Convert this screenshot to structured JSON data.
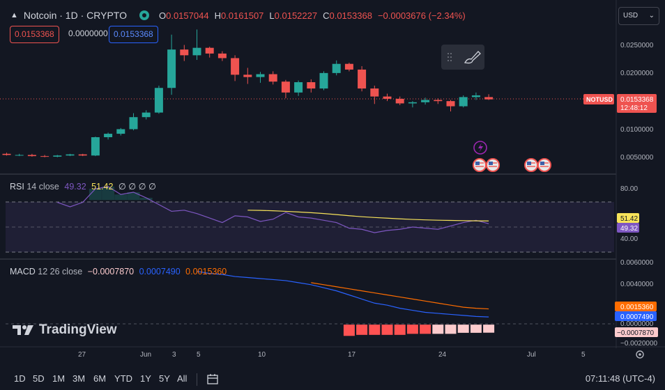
{
  "header": {
    "symbol": "Notcoin · 1D · CRYPTO",
    "open_key": "O",
    "open": "0.0157044",
    "high_key": "H",
    "high": "0.0161507",
    "low_key": "L",
    "low": "0.0152227",
    "close_key": "C",
    "close": "0.0153368",
    "change": "−0.0003676 (−2.34%)"
  },
  "quote": {
    "sell": "0.0153368",
    "spread": "0.0000000",
    "buy": "0.0153368"
  },
  "currency": {
    "label": "USD"
  },
  "price_axis": {
    "ticks": [
      "0.0250000",
      "0.0200000",
      "0.0100000",
      "0.0050000"
    ],
    "tag_symbol": "NOTUSD",
    "tag_price": "0.0153368",
    "tag_countdown": "12:48:12"
  },
  "rsi": {
    "name": "RSI",
    "params": "14 close",
    "value1": "49.32",
    "value2": "51.42",
    "extra": "∅ ∅ ∅ ∅",
    "ticks": [
      "80.00",
      "40.00"
    ],
    "tag_ma": "51.42",
    "tag_rsi": "49.32"
  },
  "macd": {
    "name": "MACD",
    "params": "12 26 close",
    "hist": "−0.0007870",
    "macd": "0.0007490",
    "signal": "0.0015360",
    "ticks": [
      "0.0060000",
      "0.0040000",
      "0.0000000",
      "−0.0020000"
    ],
    "tag_signal": "0.0015360",
    "tag_macd": "0.0007490",
    "tag_hist": "−0.0007870"
  },
  "time_axis": {
    "labels": [
      "27",
      "Jun",
      "3",
      "5",
      "10",
      "17",
      "24",
      "Jul",
      "5"
    ]
  },
  "branding": {
    "logo_text": "TradingView"
  },
  "bottom_bar": {
    "timeframes": [
      "1D",
      "5D",
      "1M",
      "3M",
      "6M",
      "YTD",
      "1Y",
      "5Y",
      "All"
    ],
    "clock": "07:11:48 (UTC-4)"
  },
  "colors": {
    "up": "#26a69a",
    "down": "#ef5350",
    "rsi_line": "#7e57c2",
    "rsi_ma": "#f7e35a",
    "macd_line": "#2962ff",
    "signal_line": "#ff6d00",
    "background": "#131722"
  },
  "chart_data": {
    "type": "candlestick",
    "ohlc": [
      [
        0.0058,
        0.006,
        0.0055,
        0.0056
      ],
      [
        0.0056,
        0.0058,
        0.0054,
        0.0056
      ],
      [
        0.0056,
        0.0058,
        0.0053,
        0.0054
      ],
      [
        0.0054,
        0.0056,
        0.0052,
        0.0053
      ],
      [
        0.0053,
        0.0056,
        0.0052,
        0.0055
      ],
      [
        0.0055,
        0.0058,
        0.0054,
        0.0057
      ],
      [
        0.0057,
        0.0058,
        0.0054,
        0.0055
      ],
      [
        0.0055,
        0.0088,
        0.0054,
        0.0087
      ],
      [
        0.0087,
        0.0095,
        0.0083,
        0.0093
      ],
      [
        0.0093,
        0.0103,
        0.009,
        0.0101
      ],
      [
        0.0101,
        0.0129,
        0.0099,
        0.0122
      ],
      [
        0.0122,
        0.0134,
        0.0118,
        0.013
      ],
      [
        0.013,
        0.0177,
        0.0128,
        0.0173
      ],
      [
        0.0173,
        0.0266,
        0.0161,
        0.024
      ],
      [
        0.024,
        0.0248,
        0.022,
        0.023
      ],
      [
        0.023,
        0.0275,
        0.0222,
        0.0243
      ],
      [
        0.0243,
        0.0245,
        0.0226,
        0.0233
      ],
      [
        0.0233,
        0.0237,
        0.022,
        0.0225
      ],
      [
        0.0225,
        0.023,
        0.0185,
        0.0196
      ],
      [
        0.0196,
        0.0208,
        0.018,
        0.0192
      ],
      [
        0.0192,
        0.0201,
        0.0182,
        0.0197
      ],
      [
        0.0197,
        0.0202,
        0.0179,
        0.0184
      ],
      [
        0.0184,
        0.0187,
        0.0155,
        0.0165
      ],
      [
        0.0165,
        0.0186,
        0.0159,
        0.0183
      ],
      [
        0.0183,
        0.0188,
        0.0165,
        0.0172
      ],
      [
        0.0172,
        0.0202,
        0.0169,
        0.0199
      ],
      [
        0.0199,
        0.0221,
        0.0195,
        0.0215
      ],
      [
        0.0215,
        0.0217,
        0.0202,
        0.0205
      ],
      [
        0.0205,
        0.0211,
        0.0167,
        0.0172
      ],
      [
        0.0172,
        0.0177,
        0.0145,
        0.0158
      ],
      [
        0.0158,
        0.0163,
        0.015,
        0.0154
      ],
      [
        0.0154,
        0.0158,
        0.0143,
        0.0146
      ],
      [
        0.0146,
        0.015,
        0.0139,
        0.0148
      ],
      [
        0.0148,
        0.0156,
        0.0144,
        0.0152
      ],
      [
        0.0152,
        0.0155,
        0.0145,
        0.015
      ],
      [
        0.015,
        0.0152,
        0.0132,
        0.0141
      ],
      [
        0.0141,
        0.016,
        0.0139,
        0.0157
      ],
      [
        0.0157,
        0.0165,
        0.0152,
        0.016
      ],
      [
        0.0157,
        0.0162,
        0.0152,
        0.0153
      ]
    ],
    "price_range": [
      0.0025,
      0.029
    ],
    "rsi": [
      68,
      64,
      68,
      80,
      82,
      75,
      77,
      72,
      66,
      60,
      61,
      58,
      54,
      50,
      56,
      55,
      51,
      53,
      59,
      55,
      54,
      52,
      50,
      45,
      44,
      41,
      43,
      44,
      46,
      45,
      44,
      47,
      50,
      52,
      49
    ],
    "rsi_ma": [
      61,
      60.8,
      60.5,
      60,
      59.4,
      58.8,
      58,
      57.1,
      56.1,
      55.2,
      54.5,
      53.9,
      53.3,
      52.8,
      52.4,
      52.1,
      51.9,
      51.7,
      51.5,
      51.42
    ],
    "rsi_range": [
      20,
      90
    ],
    "macd": [
      0.0052,
      0.005,
      0.0049,
      0.0047,
      0.0046,
      0.0045,
      0.0044,
      0.0043,
      0.0041,
      0.0039,
      0.0036,
      0.0033,
      0.0029,
      0.0025,
      0.0021,
      0.0019,
      0.0016,
      0.0014,
      0.0012,
      0.0011,
      0.001,
      0.0009,
      0.0008,
      0.000749
    ],
    "signal": [
      0.0041,
      0.0039,
      0.0037,
      0.0035,
      0.0033,
      0.0031,
      0.0029,
      0.0027,
      0.0025,
      0.0023,
      0.0021,
      0.0019,
      0.0017,
      0.0016,
      0.001536
    ],
    "histogram": [
      -0.0011,
      -0.001,
      -0.001,
      -0.001,
      -0.001,
      -0.0009,
      -0.0009,
      -0.0009,
      -0.0009,
      -0.0008,
      -0.0008,
      -0.000787
    ],
    "macd_range": [
      -0.0021,
      0.0062
    ]
  }
}
